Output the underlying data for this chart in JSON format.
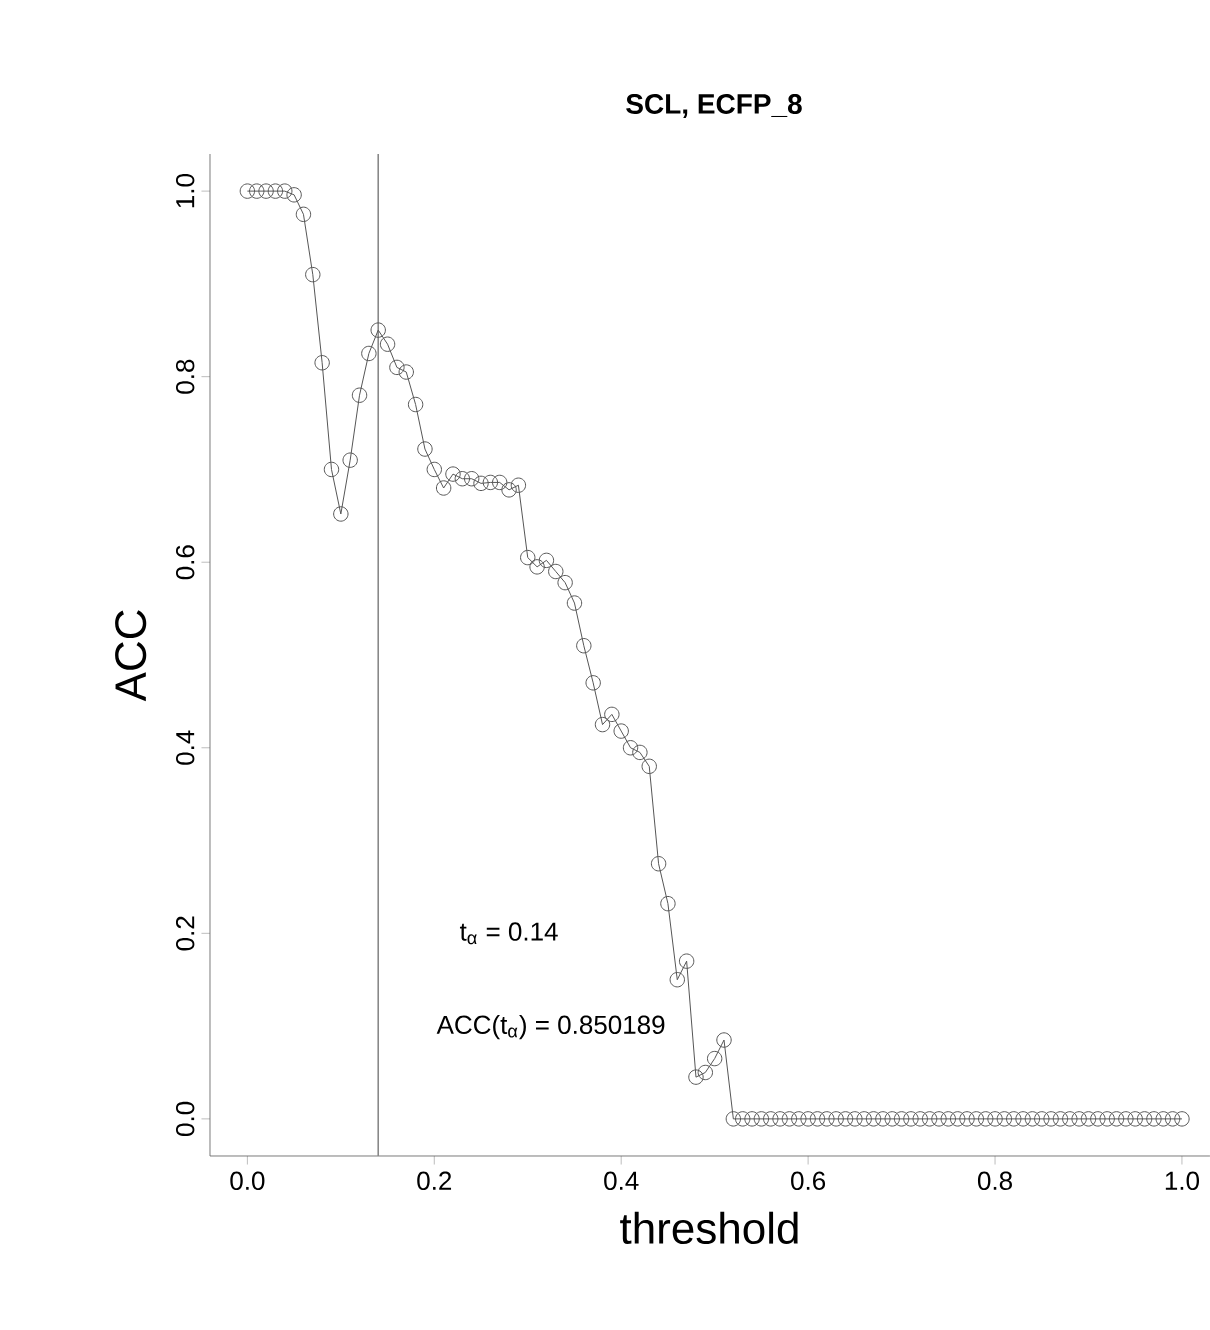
{
  "chart_data": {
    "type": "line",
    "title": "SCL, ECFP_8",
    "xlabel": "threshold",
    "ylabel": "ACC",
    "x": [
      0.0,
      0.01,
      0.02,
      0.03,
      0.04,
      0.05,
      0.06,
      0.07,
      0.08,
      0.09,
      0.1,
      0.11,
      0.12,
      0.13,
      0.14,
      0.15,
      0.16,
      0.17,
      0.18,
      0.19,
      0.2,
      0.21,
      0.22,
      0.23,
      0.24,
      0.25,
      0.26,
      0.27,
      0.28,
      0.29,
      0.3,
      0.31,
      0.32,
      0.33,
      0.34,
      0.35,
      0.36,
      0.37,
      0.38,
      0.39,
      0.4,
      0.41,
      0.42,
      0.43,
      0.44,
      0.45,
      0.46,
      0.47,
      0.48,
      0.49,
      0.5,
      0.51,
      0.52,
      0.53,
      0.54,
      0.55,
      0.56,
      0.57,
      0.58,
      0.59,
      0.6,
      0.61,
      0.62,
      0.63,
      0.64,
      0.65,
      0.66,
      0.67,
      0.68,
      0.69,
      0.7,
      0.71,
      0.72,
      0.73,
      0.74,
      0.75,
      0.76,
      0.77,
      0.78,
      0.79,
      0.8,
      0.81,
      0.82,
      0.83,
      0.84,
      0.85,
      0.86,
      0.87,
      0.88,
      0.89,
      0.9,
      0.91,
      0.92,
      0.93,
      0.94,
      0.95,
      0.96,
      0.97,
      0.98,
      0.99,
      1.0
    ],
    "series": [
      {
        "color": "#555555",
        "values": [
          1.0,
          1.0,
          1.0,
          1.0,
          1.0,
          0.996,
          0.975,
          0.91,
          0.815,
          0.7,
          0.652,
          0.71,
          0.78,
          0.825,
          0.850189,
          0.835,
          0.81,
          0.805,
          0.77,
          0.722,
          0.7,
          0.68,
          0.695,
          0.69,
          0.69,
          0.685,
          0.686,
          0.686,
          0.678,
          0.683,
          0.605,
          0.595,
          0.602,
          0.59,
          0.578,
          0.556,
          0.51,
          0.47,
          0.425,
          0.436,
          0.418,
          0.4,
          0.395,
          0.38,
          0.275,
          0.232,
          0.15,
          0.17,
          0.045,
          0.05,
          0.065,
          0.085,
          0,
          0,
          0,
          0,
          0,
          0,
          0,
          0,
          0,
          0,
          0,
          0,
          0,
          0,
          0,
          0,
          0,
          0,
          0,
          0,
          0,
          0,
          0,
          0,
          0,
          0,
          0,
          0,
          0,
          0,
          0,
          0,
          0,
          0,
          0,
          0,
          0,
          0,
          0,
          0,
          0,
          0,
          0,
          0,
          0,
          0,
          0,
          0,
          0
        ]
      }
    ],
    "marker": "circle",
    "line_style": "solid",
    "grid": false,
    "xlim": [
      -0.04,
      1.03
    ],
    "ylim": [
      -0.04,
      1.04
    ],
    "xticks": [
      {
        "value": 0,
        "label": "0.0"
      },
      0.2,
      0.4,
      0.6,
      0.8,
      {
        "value": 1,
        "label": "1.0"
      }
    ],
    "yticks": [
      {
        "value": 0,
        "label": "0.0"
      },
      0.2,
      0.4,
      0.6,
      0.8,
      {
        "value": 1,
        "label": "1.0"
      }
    ],
    "ref_lines": [
      {
        "axis": "x",
        "value": 0.14,
        "color": "#888888"
      }
    ],
    "annotations": [
      "t$_{α}$ = 0.14",
      "ACC(t$_{α}$) = 0.850189"
    ]
  }
}
